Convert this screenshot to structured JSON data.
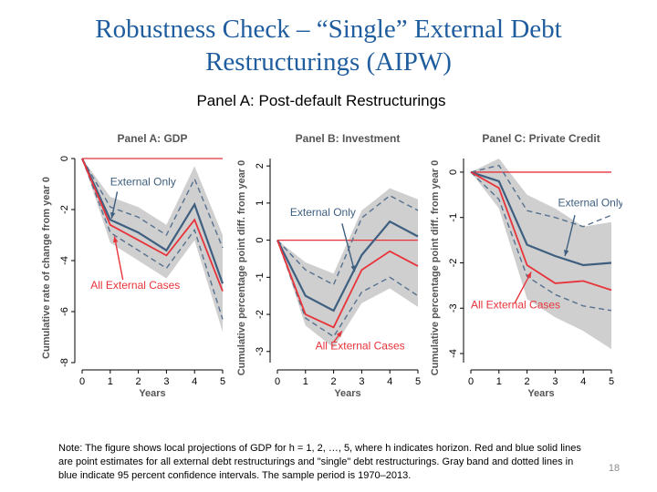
{
  "slide": {
    "title_line1": "Robustness Check – “Single” External Debt",
    "title_line2": "Restructurings (AIPW)",
    "panel_heading": "Panel A: Post-default Restructurings",
    "note": "Note: The figure shows local projections of GDP for h = 1, 2, …, 5, where h indicates horizon. Red and blue solid lines are point estimates for all external debt restructurings and \"single\" debt restructurings. Gray band and dotted lines in blue indicate 95 percent confidence intervals. The sample period is 1970–2013.",
    "slide_number": "18"
  },
  "colors": {
    "red": "#e8333a",
    "blue": "#3e5f80",
    "blue_ci": "#56718f",
    "band": "#cfcfcf",
    "title": "#1f5d9e",
    "panel_title": "#555555"
  },
  "chart_data": [
    {
      "type": "line",
      "title": "Panel A: GDP",
      "xlabel": "Years",
      "ylabel": "Cumulative rate of change from year 0",
      "x": [
        0,
        1,
        2,
        3,
        4,
        5
      ],
      "xticks": [
        "0",
        "1",
        "2",
        "3",
        "4",
        "5"
      ],
      "yticks": [
        "0",
        "-2",
        "-4",
        "-6",
        "-8"
      ],
      "ylim": [
        -8,
        0
      ],
      "series": [
        {
          "name": "External Only",
          "values": [
            0,
            -2.4,
            -2.9,
            -3.6,
            -1.8,
            -4.9
          ]
        },
        {
          "name": "All External Cases",
          "values": [
            0,
            -2.6,
            -3.2,
            -3.8,
            -2.4,
            -5.2
          ]
        }
      ],
      "band": {
        "lower": [
          0,
          -3.3,
          -4.0,
          -4.7,
          -3.2,
          -6.8
        ],
        "upper": [
          0,
          -1.5,
          -1.9,
          -2.6,
          -0.3,
          -3.0
        ]
      },
      "ci_lines": {
        "lower": [
          0,
          -2.9,
          -3.6,
          -4.3,
          -2.8,
          -6.3
        ],
        "upper": [
          0,
          -1.9,
          -2.3,
          -3.0,
          -0.8,
          -3.5
        ]
      },
      "ref_line": 0
    },
    {
      "type": "line",
      "title": "Panel B: Investment",
      "xlabel": "Years",
      "ylabel": "Cumulative percentage point diff. from year 0",
      "x": [
        0,
        1,
        2,
        3,
        4,
        5
      ],
      "xticks": [
        "0",
        "1",
        "2",
        "3",
        "4",
        "5"
      ],
      "yticks": [
        "2",
        "1",
        "0",
        "-1",
        "-2",
        "-3"
      ],
      "ylim": [
        -3.3,
        2.2
      ],
      "series": [
        {
          "name": "External Only",
          "values": [
            0,
            -1.5,
            -1.9,
            -0.4,
            0.5,
            0.1
          ]
        },
        {
          "name": "All External Cases",
          "values": [
            0,
            -2.0,
            -2.35,
            -0.8,
            -0.3,
            -0.7
          ]
        }
      ],
      "band": {
        "lower": [
          0,
          -2.3,
          -2.9,
          -1.7,
          -1.3,
          -1.8
        ],
        "upper": [
          0,
          -0.6,
          -0.9,
          0.8,
          1.4,
          1.1
        ]
      },
      "ci_lines": {
        "lower": [
          0,
          -2.1,
          -2.6,
          -1.4,
          -1.0,
          -1.5
        ],
        "upper": [
          0,
          -0.8,
          -1.2,
          0.6,
          1.2,
          0.8
        ]
      },
      "ref_line": 0
    },
    {
      "type": "line",
      "title": "Panel C: Private Credit",
      "xlabel": "Years",
      "ylabel": "Cumulative percentage point diff. from year 0",
      "x": [
        0,
        1,
        2,
        3,
        4,
        5
      ],
      "xticks": [
        "0",
        "1",
        "2",
        "3",
        "4",
        "5"
      ],
      "yticks": [
        "0",
        "-1",
        "-2",
        "-3",
        "-4"
      ],
      "ylim": [
        -4.2,
        0.3
      ],
      "series": [
        {
          "name": "External Only",
          "values": [
            0,
            -0.2,
            -1.6,
            -1.85,
            -2.05,
            -2.0
          ]
        },
        {
          "name": "All External Cases",
          "values": [
            0,
            -0.35,
            -2.05,
            -2.45,
            -2.4,
            -2.6
          ]
        }
      ],
      "band": {
        "lower": [
          0,
          -0.8,
          -2.8,
          -3.2,
          -3.5,
          -3.9
        ],
        "upper": [
          0,
          0.3,
          -0.5,
          -0.8,
          -1.2,
          -1.1
        ]
      },
      "ci_lines": {
        "lower": [
          0,
          -0.6,
          -2.3,
          -2.7,
          -2.95,
          -3.05
        ],
        "upper": [
          0,
          0.15,
          -0.85,
          -1.0,
          -1.2,
          -0.95
        ]
      },
      "ref_line": 0
    }
  ]
}
